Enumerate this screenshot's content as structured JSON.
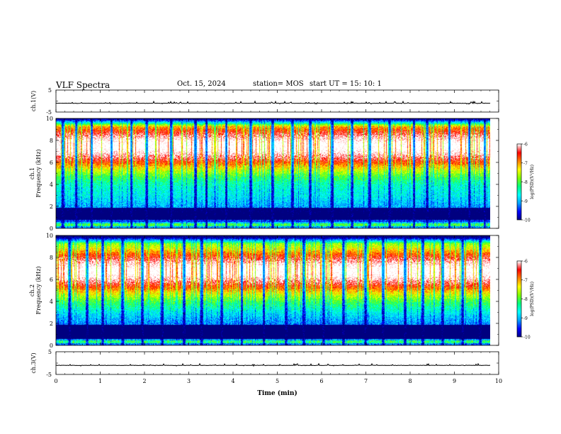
{
  "header": {
    "title": "VLF Spectra",
    "date": "Oct. 15, 2024",
    "station": "station= MOS",
    "start": "start  UT  =   15: 10: 1"
  },
  "chart_data": [
    {
      "type": "line",
      "panel": "channel-1-waveform",
      "ylabel": "ch.1(V)",
      "ylim": [
        -5,
        5
      ],
      "yticks": [
        "5",
        "-5"
      ],
      "xlim": [
        0,
        10
      ],
      "baseline_value": -1.0,
      "spike_amplitude": 0.6
    },
    {
      "type": "heatmap",
      "panel": "channel-1-spectrogram",
      "ylabel": "ch.1\nFrequency (kHz)",
      "ylim": [
        0,
        10
      ],
      "yticks": [
        "0",
        "2",
        "4",
        "6",
        "8",
        "10"
      ],
      "xlim": [
        0,
        9.83
      ],
      "z_range": [
        -10,
        -6
      ],
      "colorbar_label": "log(PSD)(V²/Hz)",
      "colorbar_ticks": [
        "-6",
        "-7",
        "-8",
        "-9",
        "-10"
      ],
      "colormap": [
        "#000080",
        "#0000ff",
        "#00a0ff",
        "#00ffff",
        "#00ff80",
        "#80ff00",
        "#ffff00",
        "#ff8000",
        "#ff0000",
        "#ffffff"
      ],
      "band_peak_khz": 7.5,
      "band_low_khz": 3.0,
      "quiet_bands_khz": [
        [
          0.8,
          1.9
        ]
      ],
      "gap_columns_min": [
        0.15,
        0.45,
        0.8,
        1.25,
        1.7,
        2.05,
        2.6,
        3.15,
        3.4,
        3.85,
        4.4,
        4.9,
        5.35,
        5.75,
        6.25,
        6.7,
        7.1,
        7.55,
        8.1,
        8.4,
        8.9,
        9.35,
        9.7
      ]
    },
    {
      "type": "heatmap",
      "panel": "channel-2-spectrogram",
      "ylabel": "ch.2\nFrequency (kHz)",
      "ylim": [
        0,
        10
      ],
      "yticks": [
        "0",
        "2",
        "4",
        "6",
        "8",
        "10"
      ],
      "xlim": [
        0,
        9.83
      ],
      "z_range": [
        -10,
        -6
      ],
      "colorbar_label": "log(PSD)(V²/Hz)",
      "colorbar_ticks": [
        "-6",
        "-7",
        "-8",
        "-9",
        "-10"
      ],
      "colormap": [
        "#000080",
        "#0000ff",
        "#00a0ff",
        "#00ffff",
        "#00ff80",
        "#80ff00",
        "#ffff00",
        "#ff8000",
        "#ff0000",
        "#ffffff"
      ],
      "band_peak_khz": 6.8,
      "band_low_khz": 3.5,
      "quiet_bands_khz": [
        [
          0.6,
          1.9
        ]
      ],
      "gap_columns_min": [
        0.3,
        0.7,
        1.05,
        1.5,
        1.95,
        2.4,
        2.9,
        3.3,
        3.75,
        4.2,
        4.7,
        5.2,
        5.6,
        6.05,
        6.5,
        7.0,
        7.4,
        7.9,
        8.3,
        8.75,
        9.2,
        9.6
      ]
    },
    {
      "type": "line",
      "panel": "channel-3-waveform",
      "ylabel": "ch.3(V)",
      "ylim": [
        -5,
        5
      ],
      "yticks": [
        "5",
        "-5"
      ],
      "xlim": [
        0,
        10
      ],
      "baseline_value": -1.0,
      "spike_amplitude": 0.5
    }
  ],
  "x_axis": {
    "label": "Time  (min)",
    "ticks": [
      "0",
      "1",
      "2",
      "3",
      "4",
      "5",
      "6",
      "7",
      "8",
      "9",
      "10"
    ],
    "range": [
      0,
      10
    ]
  }
}
